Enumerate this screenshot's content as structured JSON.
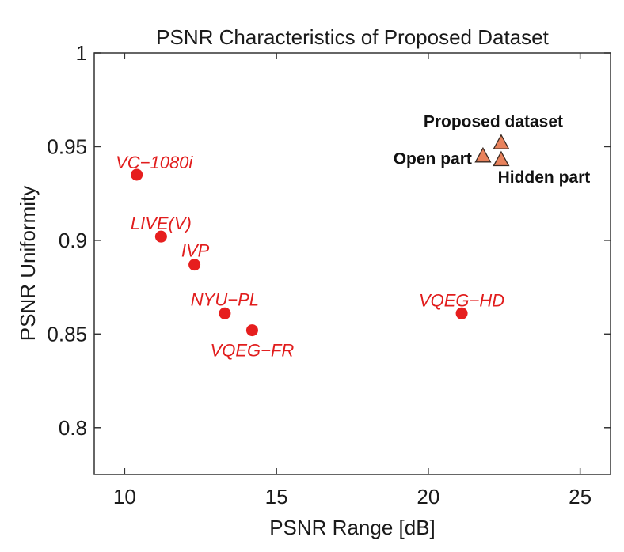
{
  "chart_data": {
    "type": "scatter",
    "title": "PSNR Characteristics of Proposed Dataset",
    "xlabel": "PSNR Range [dB]",
    "ylabel": "PSNR Uniformity",
    "xlim": [
      9,
      26
    ],
    "ylim": [
      0.775,
      1.0
    ],
    "xticks": [
      10,
      15,
      20,
      25
    ],
    "yticks": [
      0.8,
      0.85,
      0.9,
      0.95,
      1.0
    ],
    "xtick_labels": [
      "10",
      "15",
      "20",
      "25"
    ],
    "ytick_labels": [
      "0.8",
      "0.85",
      "0.9",
      "0.95",
      "1"
    ],
    "grid": false,
    "colors": {
      "datasets": "#e61e1e",
      "proposed_fill": "#e8825c",
      "proposed_edge": "#3a2a22",
      "axis": "#333333"
    },
    "series": [
      {
        "marker": "circle",
        "points": [
          {
            "label": "VC−1080i",
            "x": 10.4,
            "y": 0.935
          },
          {
            "label": "LIVE(V)",
            "x": 11.2,
            "y": 0.902
          },
          {
            "label": "IVP",
            "x": 12.3,
            "y": 0.887
          },
          {
            "label": "NYU−PL",
            "x": 13.3,
            "y": 0.861
          },
          {
            "label": "VQEG−FR",
            "x": 14.2,
            "y": 0.852
          },
          {
            "label": "VQEG−HD",
            "x": 21.1,
            "y": 0.861
          }
        ]
      },
      {
        "marker": "triangle",
        "points": [
          {
            "label": "Proposed dataset",
            "x": 22.4,
            "y": 0.952
          },
          {
            "label": "Open part",
            "x": 21.8,
            "y": 0.945
          },
          {
            "label": "Hidden part",
            "x": 22.4,
            "y": 0.943
          }
        ]
      }
    ]
  }
}
